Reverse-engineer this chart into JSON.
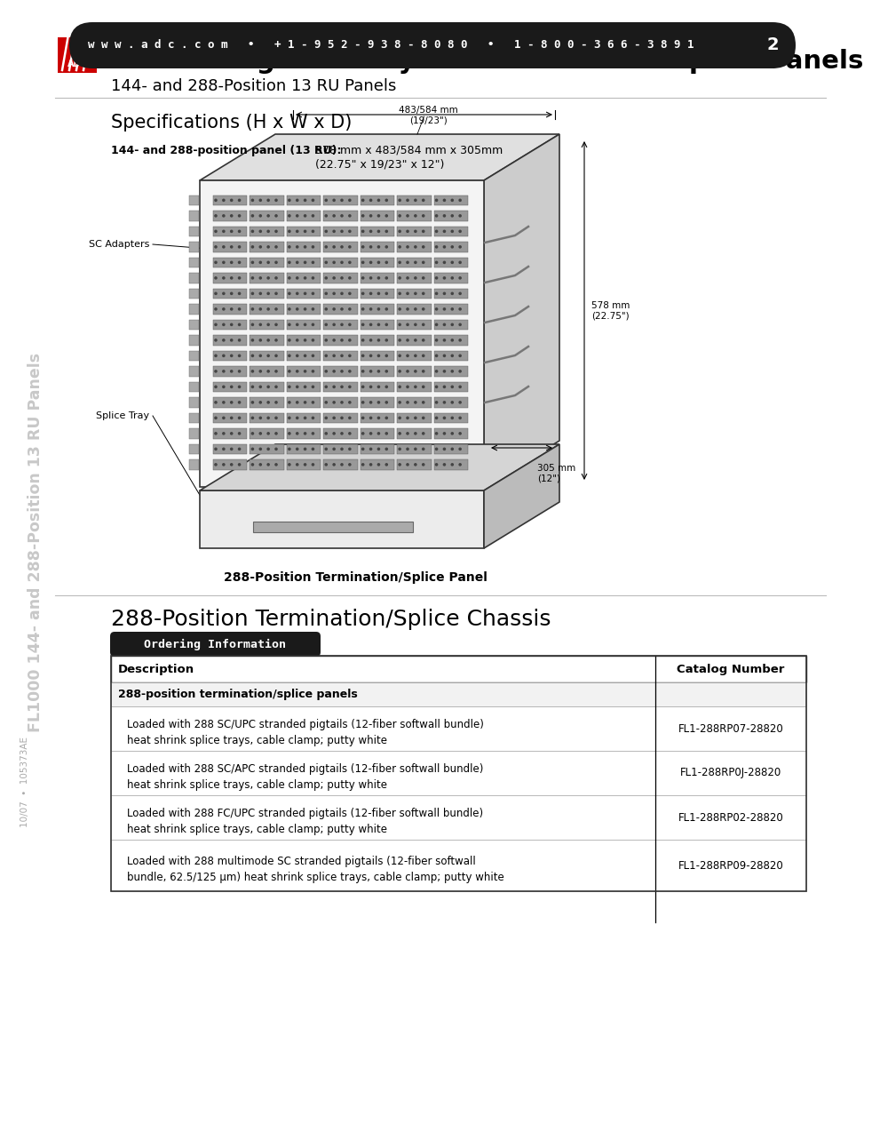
{
  "title_main": "FL1000 High-Density Termination and Splice Panels",
  "title_sub": "144- and 288-Position 13 RU Panels",
  "specs_heading": "Specifications (H x W x D)",
  "specs_label": "144- and 288-position panel (13 RU):",
  "specs_value": "578 mm x 483/584 mm x 305mm\n(22.75\" x 19/23\" x 12\")",
  "diagram_caption": "288-Position Termination/Splice Panel",
  "section2_heading": "288-Position Termination/Splice Chassis",
  "table_header_tab": "Ordering Information",
  "table_col1": "Description",
  "table_col2": "Catalog Number",
  "table_section": "288-position termination/splice panels",
  "table_rows": [
    {
      "desc": "Loaded with 288 SC/UPC stranded pigtails (12-fiber softwall bundle)\nheat shrink splice trays, cable clamp; putty white",
      "cat": "FL1-288RP07-28820"
    },
    {
      "desc": "Loaded with 288 SC/APC stranded pigtails (12-fiber softwall bundle)\nheat shrink splice trays, cable clamp; putty white",
      "cat": "FL1-288RP0J-28820"
    },
    {
      "desc": "Loaded with 288 FC/UPC stranded pigtails (12-fiber softwall bundle)\nheat shrink splice trays, cable clamp; putty white",
      "cat": "FL1-288RP02-28820"
    },
    {
      "desc": "Loaded with 288 multimode SC stranded pigtails (12-fiber softwall\nbundle, 62.5/125 μm) heat shrink splice trays, cable clamp; putty white",
      "cat": "FL1-288RP09-28820"
    }
  ],
  "footer_text": "w w w . a d c . c o m   •   + 1 - 9 5 2 - 9 3 8 - 8 0 8 0   •   1 - 8 0 0 - 3 6 6 - 3 8 9 1",
  "page_num": "2",
  "sidebar_text": "FL1000 144- and 288-Position 13 RU Panels",
  "sidebar_small": "10/07  •  105373AE",
  "adc_logo_color": "#cc0000",
  "bg_color": "#ffffff",
  "table_header_bg": "#1a1a1a",
  "table_header_color": "#ffffff",
  "footer_bg": "#1a1a1a",
  "footer_color": "#ffffff",
  "border_color": "#000000",
  "dim_483": "483/584 mm\n(19/23\")",
  "dim_578": "578 mm\n(22.75\")",
  "dim_305": "305 mm\n(12\")",
  "label_sc": "SC Adapters",
  "label_splice": "Splice Tray"
}
